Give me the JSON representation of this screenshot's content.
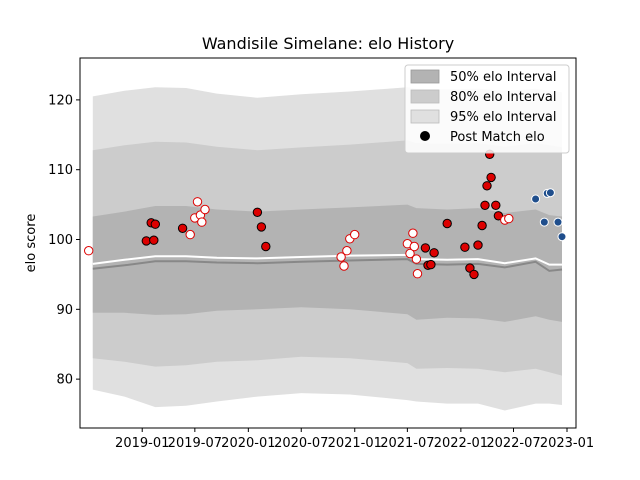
{
  "chart_data": {
    "type": "scatter",
    "title": "Wandisile Simelane: elo History",
    "xlabel": "",
    "ylabel": "elo score",
    "xlim": [
      "2018-06-01",
      "2023-02-01"
    ],
    "ylim": [
      73,
      126
    ],
    "x_ticks": [
      "2019-01",
      "2019-07",
      "2020-01",
      "2020-07",
      "2021-01",
      "2021-07",
      "2022-01",
      "2022-07",
      "2023-01"
    ],
    "y_ticks": [
      80,
      90,
      100,
      110,
      120
    ],
    "grid": false,
    "legend": {
      "position": "top-right",
      "entries": [
        "50% elo Interval",
        "80% elo Interval",
        "95% elo Interval",
        "Post Match elo"
      ]
    },
    "colors": {
      "band_95": "#e0e0e0",
      "band_80": "#cccccc",
      "band_50": "#b3b3b3",
      "median_line": "#888888",
      "mean_line": "#ffffff",
      "point_red_fill": "#dd0000",
      "point_red_open": "#ffffff",
      "point_red_edge": "#dd0000",
      "point_blue_fill": "#1f4e8c",
      "point_blue_edge": "#ffffff"
    },
    "bands": [
      {
        "date": "2018-07-15",
        "p2_5": 78.5,
        "p10": 83,
        "p25": 89.5,
        "p50": 95.8,
        "mean": 96.5,
        "p75": 103.3,
        "p90": 112.8,
        "p97_5": 120.5
      },
      {
        "date": "2018-11-01",
        "p2_5": 77.5,
        "p10": 82.5,
        "p25": 89.5,
        "p50": 96.3,
        "mean": 97.1,
        "p75": 104,
        "p90": 113.5,
        "p97_5": 121.3
      },
      {
        "date": "2019-02-15",
        "p2_5": 76,
        "p10": 81.8,
        "p25": 89.2,
        "p50": 96.9,
        "mean": 97.6,
        "p75": 104.8,
        "p90": 114,
        "p97_5": 121.8
      },
      {
        "date": "2019-06-01",
        "p2_5": 76.2,
        "p10": 82,
        "p25": 89.3,
        "p50": 96.9,
        "mean": 97.6,
        "p75": 104.8,
        "p90": 113.9,
        "p97_5": 121.7
      },
      {
        "date": "2019-09-15",
        "p2_5": 76.8,
        "p10": 82.5,
        "p25": 89.8,
        "p50": 96.7,
        "mean": 97.4,
        "p75": 104.3,
        "p90": 113.3,
        "p97_5": 120.9
      },
      {
        "date": "2020-02-01",
        "p2_5": 77.5,
        "p10": 82.7,
        "p25": 90,
        "p50": 96.6,
        "mean": 97.3,
        "p75": 104,
        "p90": 112.8,
        "p97_5": 120.3
      },
      {
        "date": "2020-07-01",
        "p2_5": 78,
        "p10": 83.2,
        "p25": 90.3,
        "p50": 96.8,
        "mean": 97.5,
        "p75": 104.3,
        "p90": 113.2,
        "p97_5": 120.8
      },
      {
        "date": "2020-12-15",
        "p2_5": 77.8,
        "p10": 83,
        "p25": 90,
        "p50": 97,
        "mean": 97.7,
        "p75": 104.6,
        "p90": 113.6,
        "p97_5": 121.2
      },
      {
        "date": "2021-07-01",
        "p2_5": 77,
        "p10": 82.3,
        "p25": 89.3,
        "p50": 97.2,
        "mean": 97.8,
        "p75": 105,
        "p90": 114.2,
        "p97_5": 121.8
      },
      {
        "date": "2021-08-01",
        "p2_5": 76.8,
        "p10": 81.5,
        "p25": 88.5,
        "p50": 96.5,
        "mean": 97.2,
        "p75": 104.5,
        "p90": 113.8,
        "p97_5": 121.6
      },
      {
        "date": "2021-11-15",
        "p2_5": 76.5,
        "p10": 81.6,
        "p25": 88.8,
        "p50": 96.4,
        "mean": 97.1,
        "p75": 104.3,
        "p90": 113.7,
        "p97_5": 121.5
      },
      {
        "date": "2022-03-01",
        "p2_5": 76.5,
        "p10": 81.5,
        "p25": 88.7,
        "p50": 96.5,
        "mean": 97.2,
        "p75": 104.5,
        "p90": 113.8,
        "p97_5": 121.6
      },
      {
        "date": "2022-06-01",
        "p2_5": 75.5,
        "p10": 81,
        "p25": 88.2,
        "p50": 96,
        "mean": 96.6,
        "p75": 103.8,
        "p90": 113.3,
        "p97_5": 121.3
      },
      {
        "date": "2022-09-15",
        "p2_5": 76.5,
        "p10": 81.5,
        "p25": 89,
        "p50": 96.8,
        "mean": 97.3,
        "p75": 104.3,
        "p90": 113.8,
        "p97_5": 121.6
      },
      {
        "date": "2022-11-01",
        "p2_5": 76.5,
        "p10": 81,
        "p25": 88.5,
        "p50": 95.5,
        "mean": 96.4,
        "p75": 103.5,
        "p90": 113.5,
        "p97_5": 121.3
      },
      {
        "date": "2022-12-15",
        "p2_5": 76.3,
        "p10": 80.5,
        "p25": 88.2,
        "p50": 95.7,
        "mean": 96.4,
        "p75": 103.3,
        "p90": 113.2,
        "p97_5": 121.1
      }
    ],
    "points": [
      {
        "date": "2018-07-01",
        "y": 98.4,
        "style": "open"
      },
      {
        "date": "2019-01-15",
        "y": 99.8,
        "style": "filled"
      },
      {
        "date": "2019-02-01",
        "y": 102.4,
        "style": "filled"
      },
      {
        "date": "2019-02-10",
        "y": 99.9,
        "style": "filled"
      },
      {
        "date": "2019-02-15",
        "y": 102.2,
        "style": "filled"
      },
      {
        "date": "2019-05-20",
        "y": 101.6,
        "style": "filled"
      },
      {
        "date": "2019-06-15",
        "y": 100.7,
        "style": "open"
      },
      {
        "date": "2019-07-01",
        "y": 103.1,
        "style": "open"
      },
      {
        "date": "2019-07-10",
        "y": 105.4,
        "style": "open"
      },
      {
        "date": "2019-07-20",
        "y": 103.5,
        "style": "open"
      },
      {
        "date": "2019-07-25",
        "y": 102.5,
        "style": "open"
      },
      {
        "date": "2019-08-05",
        "y": 104.3,
        "style": "open"
      },
      {
        "date": "2020-02-01",
        "y": 103.9,
        "style": "filled"
      },
      {
        "date": "2020-02-15",
        "y": 101.8,
        "style": "filled"
      },
      {
        "date": "2020-03-01",
        "y": 99.0,
        "style": "filled"
      },
      {
        "date": "2020-11-15",
        "y": 97.5,
        "style": "open"
      },
      {
        "date": "2020-11-25",
        "y": 96.2,
        "style": "open"
      },
      {
        "date": "2020-12-05",
        "y": 98.4,
        "style": "open"
      },
      {
        "date": "2020-12-15",
        "y": 100.1,
        "style": "open"
      },
      {
        "date": "2021-01-01",
        "y": 100.7,
        "style": "open"
      },
      {
        "date": "2021-07-01",
        "y": 99.4,
        "style": "open"
      },
      {
        "date": "2021-07-10",
        "y": 98.0,
        "style": "open"
      },
      {
        "date": "2021-07-20",
        "y": 100.9,
        "style": "open"
      },
      {
        "date": "2021-07-25",
        "y": 99.0,
        "style": "open"
      },
      {
        "date": "2021-08-01",
        "y": 97.2,
        "style": "open"
      },
      {
        "date": "2021-08-05",
        "y": 95.1,
        "style": "open"
      },
      {
        "date": "2021-09-01",
        "y": 98.8,
        "style": "filled"
      },
      {
        "date": "2021-09-10",
        "y": 96.3,
        "style": "filled"
      },
      {
        "date": "2021-09-20",
        "y": 96.4,
        "style": "filled"
      },
      {
        "date": "2021-10-01",
        "y": 98.1,
        "style": "filled"
      },
      {
        "date": "2021-11-15",
        "y": 102.3,
        "style": "filled"
      },
      {
        "date": "2022-01-15",
        "y": 98.9,
        "style": "filled"
      },
      {
        "date": "2022-02-01",
        "y": 95.9,
        "style": "filled"
      },
      {
        "date": "2022-02-15",
        "y": 95.0,
        "style": "filled"
      },
      {
        "date": "2022-03-01",
        "y": 99.2,
        "style": "filled"
      },
      {
        "date": "2022-03-15",
        "y": 102.0,
        "style": "filled"
      },
      {
        "date": "2022-03-25",
        "y": 104.9,
        "style": "filled"
      },
      {
        "date": "2022-04-01",
        "y": 107.7,
        "style": "filled"
      },
      {
        "date": "2022-04-10",
        "y": 112.2,
        "style": "filled"
      },
      {
        "date": "2022-04-15",
        "y": 108.9,
        "style": "filled"
      },
      {
        "date": "2022-05-01",
        "y": 104.9,
        "style": "filled"
      },
      {
        "date": "2022-05-10",
        "y": 103.4,
        "style": "filled"
      },
      {
        "date": "2022-06-01",
        "y": 102.8,
        "style": "open"
      },
      {
        "date": "2022-06-15",
        "y": 103.0,
        "style": "open"
      },
      {
        "date": "2022-09-15",
        "y": 105.8,
        "style": "blue"
      },
      {
        "date": "2022-10-15",
        "y": 102.5,
        "style": "blue"
      },
      {
        "date": "2022-10-25",
        "y": 106.6,
        "style": "blue"
      },
      {
        "date": "2022-11-05",
        "y": 106.7,
        "style": "blue"
      },
      {
        "date": "2022-12-01",
        "y": 102.5,
        "style": "blue"
      },
      {
        "date": "2022-12-15",
        "y": 100.4,
        "style": "blue"
      }
    ]
  }
}
